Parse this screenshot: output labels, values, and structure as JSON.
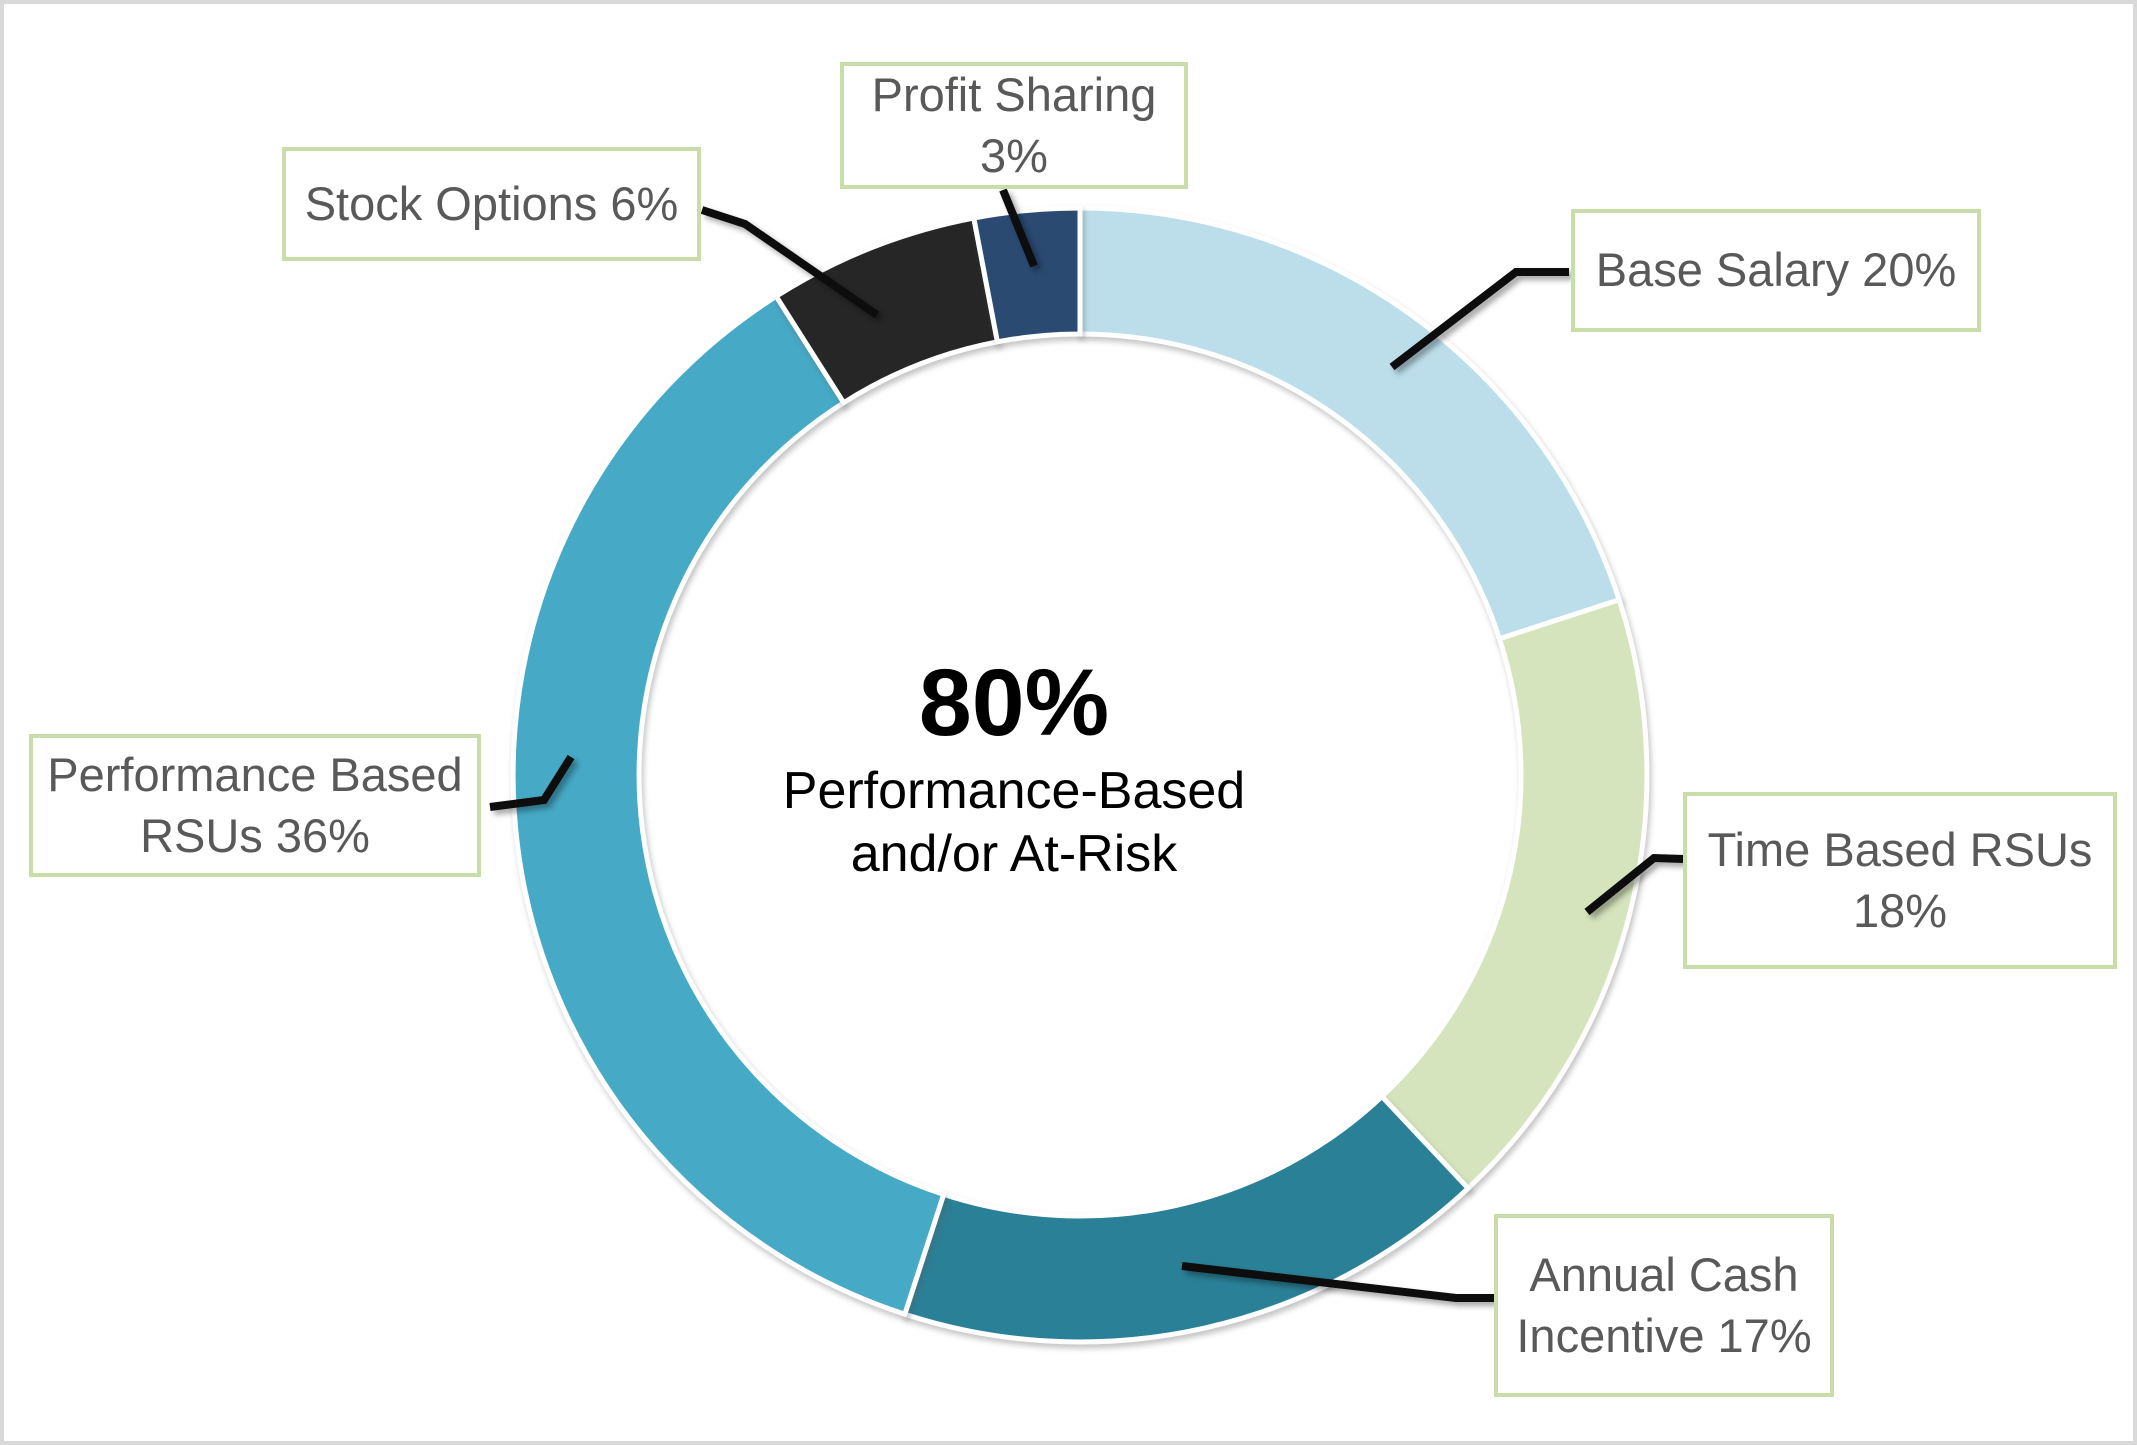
{
  "chart_data": {
    "type": "pie",
    "subtype": "donut",
    "title": "",
    "legend_position": "none",
    "categories": [
      "Base Salary",
      "Time Based RSUs",
      "Annual Cash Incentive",
      "Performance Based RSUs",
      "Stock Options",
      "Profit Sharing"
    ],
    "values": [
      20,
      18,
      17,
      36,
      6,
      3
    ],
    "segments": [
      {
        "label": "Base Salary",
        "value": 20,
        "color": "#bcdeeb",
        "callout_lines": [
          "Base Salary 20%"
        ]
      },
      {
        "label": "Time Based RSUs",
        "value": 18,
        "color": "#d5e4bd",
        "callout_lines": [
          "Time Based RSUs",
          "18%"
        ]
      },
      {
        "label": "Annual Cash Incentive",
        "value": 17,
        "color": "#2a8097",
        "callout_lines": [
          "Annual Cash",
          "Incentive 17%"
        ]
      },
      {
        "label": "Performance Based RSUs",
        "value": 36,
        "color": "#46a9c5",
        "callout_lines": [
          "Performance Based",
          "RSUs 36%"
        ]
      },
      {
        "label": "Stock Options",
        "value": 6,
        "color": "#262626",
        "callout_lines": [
          "Stock Options 6%"
        ]
      },
      {
        "label": "Profit Sharing",
        "value": 3,
        "color": "#2b4a72",
        "callout_lines": [
          "Profit Sharing",
          "3%"
        ]
      }
    ],
    "center_label": {
      "headline": "80%",
      "sub_lines": [
        "Performance-Based",
        "and/or At-Risk"
      ]
    },
    "colors": {
      "callout_border": "#c9dda9",
      "callout_text": "#595959",
      "leader_line": "#0d0d0d",
      "center_text": "#000000",
      "segment_gap": "#ffffff",
      "frame_border": "#d9d9d9",
      "background": "#ffffff"
    }
  }
}
